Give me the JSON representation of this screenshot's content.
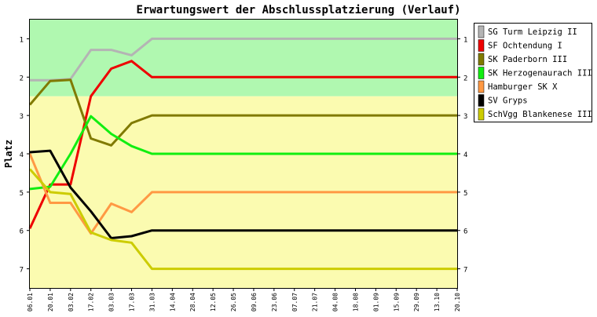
{
  "chart_data": {
    "type": "line",
    "title": "Erwartungswert der Abschlussplatzierung (Verlauf)",
    "ylabel": "Platz",
    "xlabel": "",
    "ylim": [
      0.5,
      7.5
    ],
    "y_inverted": true,
    "yticks": [
      "1",
      "2",
      "3",
      "4",
      "5",
      "6",
      "7"
    ],
    "categories": [
      "06.01",
      "20.01",
      "03.02",
      "17.02",
      "03.03",
      "17.03",
      "31.03",
      "14.04",
      "28.04",
      "12.05",
      "26.05",
      "09.06",
      "23.06",
      "07.07",
      "21.07",
      "04.08",
      "18.08",
      "01.09",
      "15.09",
      "29.09",
      "13.10",
      "20.10"
    ],
    "bands": [
      {
        "from": 0.5,
        "to": 2.5,
        "color": "#b0f8b0"
      },
      {
        "from": 2.5,
        "to": 7.5,
        "color": "#fbfbb0"
      }
    ],
    "grid": false,
    "legend_position": "right",
    "series": [
      {
        "name": "SG Turm Leipzig II",
        "color": "#b4b4b4",
        "values": [
          2.08,
          2.08,
          2.05,
          1.29,
          1.29,
          1.43,
          1.0,
          1.0,
          1.0,
          1.0,
          1.0,
          1.0,
          1.0,
          1.0,
          1.0,
          1.0,
          1.0,
          1.0,
          1.0,
          1.0,
          1.0,
          1.0
        ]
      },
      {
        "name": "SF Ochtendung I",
        "color": "#ee0000",
        "values": [
          5.95,
          4.8,
          4.8,
          2.5,
          1.78,
          1.58,
          2.0,
          2.0,
          2.0,
          2.0,
          2.0,
          2.0,
          2.0,
          2.0,
          2.0,
          2.0,
          2.0,
          2.0,
          2.0,
          2.0,
          2.0,
          2.0
        ]
      },
      {
        "name": "SK Paderborn III",
        "color": "#807a00",
        "values": [
          2.72,
          2.1,
          2.07,
          3.6,
          3.78,
          3.2,
          3.0,
          3.0,
          3.0,
          3.0,
          3.0,
          3.0,
          3.0,
          3.0,
          3.0,
          3.0,
          3.0,
          3.0,
          3.0,
          3.0,
          3.0,
          3.0
        ]
      },
      {
        "name": "SK Herzogenaurach III",
        "color": "#11ee11",
        "values": [
          4.92,
          4.86,
          4.0,
          3.02,
          3.48,
          3.8,
          4.0,
          4.0,
          4.0,
          4.0,
          4.0,
          4.0,
          4.0,
          4.0,
          4.0,
          4.0,
          4.0,
          4.0,
          4.0,
          4.0,
          4.0,
          4.0
        ]
      },
      {
        "name": "Hamburger SK X",
        "color": "#ff9944",
        "values": [
          4.0,
          5.28,
          5.28,
          6.08,
          5.3,
          5.52,
          5.0,
          5.0,
          5.0,
          5.0,
          5.0,
          5.0,
          5.0,
          5.0,
          5.0,
          5.0,
          5.0,
          5.0,
          5.0,
          5.0,
          5.0,
          5.0
        ]
      },
      {
        "name": "SV Gryps",
        "color": "#000000",
        "values": [
          3.96,
          3.92,
          4.88,
          5.5,
          6.2,
          6.15,
          6.0,
          6.0,
          6.0,
          6.0,
          6.0,
          6.0,
          6.0,
          6.0,
          6.0,
          6.0,
          6.0,
          6.0,
          6.0,
          6.0,
          6.0,
          6.0
        ]
      },
      {
        "name": "SchVgg Blankenese III",
        "color": "#cccc00",
        "values": [
          4.4,
          5.0,
          5.05,
          6.05,
          6.25,
          6.32,
          7.0,
          7.0,
          7.0,
          7.0,
          7.0,
          7.0,
          7.0,
          7.0,
          7.0,
          7.0,
          7.0,
          7.0,
          7.0,
          7.0,
          7.0,
          7.0
        ]
      }
    ]
  }
}
